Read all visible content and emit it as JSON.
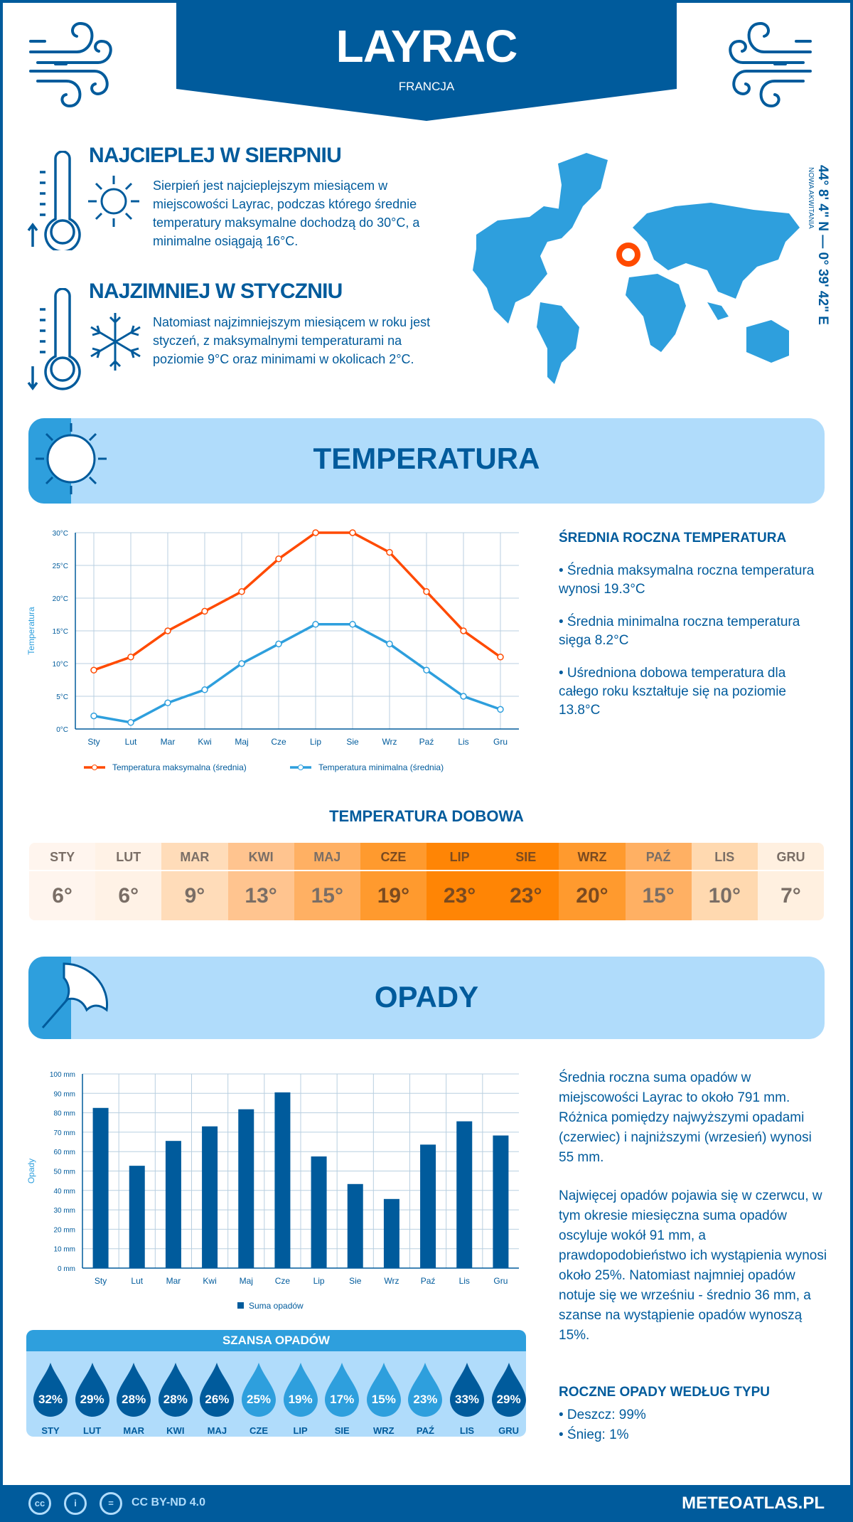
{
  "header": {
    "city": "LAYRAC",
    "country": "FRANCJA"
  },
  "warmest": {
    "title": "NAJCIEPLEJ W SIERPNIU",
    "text": "Sierpień jest najcieplejszym miesiącem w miejscowości Layrac, podczas którego średnie temperatury maksymalne dochodzą do 30°C, a minimalne osiągają 16°C."
  },
  "coldest": {
    "title": "NAJZIMNIEJ W STYCZNIU",
    "text": "Natomiast najzimniejszym miesiącem w roku jest styczeń, z maksymalnymi temperaturami na poziomie 9°C oraz minimami w okolicach 2°C."
  },
  "location": {
    "coords": "44° 8' 4\" N — 0° 39' 42\" E",
    "region": "NOWA AKWITANIA",
    "marker_color": "#ff4a00"
  },
  "temperature": {
    "section_title": "TEMPERATURA",
    "summary_title": "ŚREDNIA ROCZNA TEMPERATURA",
    "bullets": [
      "• Średnia maksymalna roczna temperatura wynosi 19.3°C",
      "• Średnia minimalna roczna temperatura sięga 8.2°C",
      "• Uśredniona dobowa temperatura dla całego roku kształtuje się na poziomie 13.8°C"
    ],
    "daily_title": "TEMPERATURA DOBOWA",
    "daily": [
      {
        "month": "STY",
        "value": "6°",
        "color": "#fff5ee"
      },
      {
        "month": "LUT",
        "value": "6°",
        "color": "#fff2e6"
      },
      {
        "month": "MAR",
        "value": "9°",
        "color": "#ffdcb9"
      },
      {
        "month": "KWI",
        "value": "13°",
        "color": "#ffc48f"
      },
      {
        "month": "MAJ",
        "value": "15°",
        "color": "#ffb063"
      },
      {
        "month": "CZE",
        "value": "19°",
        "color": "#ff9a2e"
      },
      {
        "month": "LIP",
        "value": "23°",
        "color": "#ff8505"
      },
      {
        "month": "SIE",
        "value": "23°",
        "color": "#ff8505"
      },
      {
        "month": "WRZ",
        "value": "20°",
        "color": "#ff9a2e"
      },
      {
        "month": "PAŹ",
        "value": "15°",
        "color": "#ffb063"
      },
      {
        "month": "LIS",
        "value": "10°",
        "color": "#ffd9b0"
      },
      {
        "month": "GRU",
        "value": "7°",
        "color": "#fff0e0"
      }
    ]
  },
  "precipitation": {
    "section_title": "OPADY",
    "text1": "Średnia roczna suma opadów w miejscowości Layrac to około 791 mm. Różnica pomiędzy najwyższymi opadami (czerwiec) i najniższymi (wrzesień) wynosi 55 mm.",
    "text2": "Najwięcej opadów pojawia się w czerwcu, w tym okresie miesięczna suma opadów oscyluje wokół 91 mm, a prawdopodobieństwo ich wystąpienia wynosi około 25%. Natomiast najmniej opadów notuje się we wrześniu - średnio 36 mm, a szanse na wystąpienie opadów wynoszą 15%.",
    "type_title": "ROCZNE OPADY WEDŁUG TYPU",
    "types": [
      "• Deszcz: 99%",
      "• Śnieg: 1%"
    ],
    "chance_title": "SZANSA OPADÓW",
    "chance": [
      {
        "month": "STY",
        "value": "32%"
      },
      {
        "month": "LUT",
        "value": "29%"
      },
      {
        "month": "MAR",
        "value": "28%"
      },
      {
        "month": "KWI",
        "value": "28%"
      },
      {
        "month": "MAJ",
        "value": "26%"
      },
      {
        "month": "CZE",
        "value": "25%"
      },
      {
        "month": "LIP",
        "value": "19%"
      },
      {
        "month": "SIE",
        "value": "17%"
      },
      {
        "month": "WRZ",
        "value": "15%"
      },
      {
        "month": "PAŹ",
        "value": "23%"
      },
      {
        "month": "LIS",
        "value": "33%"
      },
      {
        "month": "GRU",
        "value": "29%"
      }
    ],
    "chance_colors": {
      "high": "#005b9c",
      "low": "#2e9fdd"
    }
  },
  "chart_data": [
    {
      "type": "line",
      "categories": [
        "Sty",
        "Lut",
        "Mar",
        "Kwi",
        "Maj",
        "Cze",
        "Lip",
        "Sie",
        "Wrz",
        "Paź",
        "Lis",
        "Gru"
      ],
      "ylabel": "Temperatura",
      "ylim": [
        0,
        30
      ],
      "yticks": [
        "0°C",
        "5°C",
        "10°C",
        "15°C",
        "20°C",
        "25°C",
        "30°C"
      ],
      "grid": true,
      "legend": "bottom",
      "series": [
        {
          "name": "Temperatura maksymalna (średnia)",
          "color": "#ff4a00",
          "values": [
            9,
            11,
            15,
            18,
            21,
            26,
            30,
            30,
            27,
            21,
            15,
            11
          ]
        },
        {
          "name": "Temperatura minimalna (średnia)",
          "color": "#2e9fdd",
          "values": [
            2,
            1,
            4,
            6,
            10,
            13,
            16,
            16,
            13,
            9,
            5,
            3
          ]
        }
      ]
    },
    {
      "type": "bar",
      "categories": [
        "Sty",
        "Lut",
        "Mar",
        "Kwi",
        "Maj",
        "Cze",
        "Lip",
        "Sie",
        "Wrz",
        "Paź",
        "Lis",
        "Gru"
      ],
      "ylabel": "Opady",
      "ylim": [
        0,
        100
      ],
      "yticks": [
        "0 mm",
        "10 mm",
        "20 mm",
        "30 mm",
        "40 mm",
        "50 mm",
        "60 mm",
        "70 mm",
        "80 mm",
        "90 mm",
        "100 mm"
      ],
      "grid": true,
      "legend": "bottom",
      "series": [
        {
          "name": "Suma opadów",
          "color": "#005b9c",
          "values": [
            82.5,
            52.7,
            65.5,
            73,
            81.8,
            90.5,
            57.5,
            43.3,
            35.6,
            63.6,
            75.6,
            68.3
          ]
        }
      ]
    }
  ],
  "footer": {
    "license": "CC BY-ND 4.0",
    "brand": "METEOATLAS.PL"
  }
}
